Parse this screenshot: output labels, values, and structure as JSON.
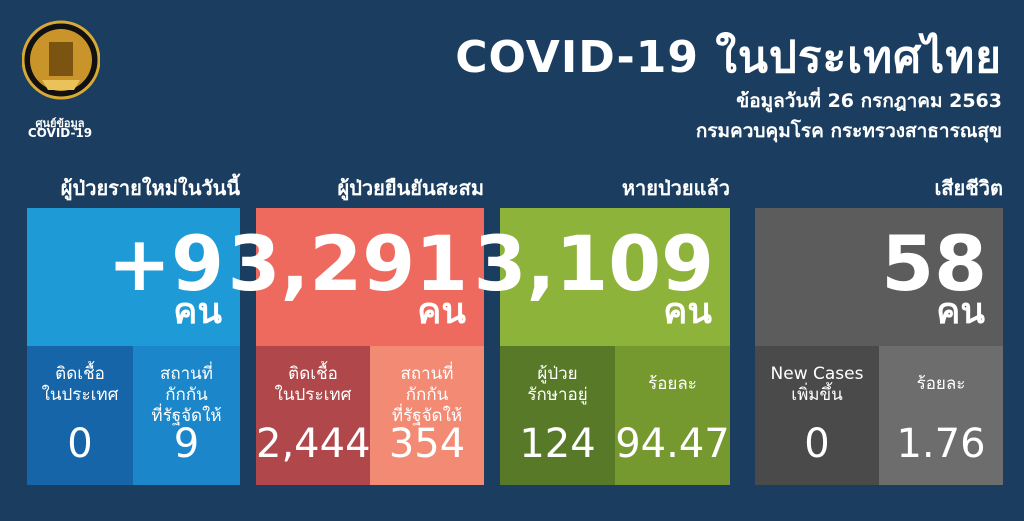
{
  "logo_caption": [
    "ศูนย์ข้อมูล",
    "COVID-19"
  ],
  "header": {
    "title": "COVID-19 ในประเทศไทย",
    "date": "ข้อมูลวันที่ 26 กรกฎาคม 2563",
    "source": "กรมควบคุมโรค กระทรวงสาธารณสุข"
  },
  "panels": [
    {
      "heading": "ผู้ป่วยรายใหม่ในวันนี้",
      "value": "+9",
      "unit": "คน",
      "sub": [
        {
          "label": [
            "ติดเชื้อ",
            "ในประเทศ"
          ],
          "value": "0"
        },
        {
          "label": [
            "สถานที่",
            "กักกัน",
            "ที่รัฐจัดให้"
          ],
          "value": "9"
        }
      ]
    },
    {
      "heading": "ผู้ป่วยยืนยันสะสม",
      "value": "3,291",
      "unit": "คน",
      "sub": [
        {
          "label": [
            "ติดเชื้อ",
            "ในประเทศ"
          ],
          "value": "2,444"
        },
        {
          "label": [
            "สถานที่",
            "กักกัน",
            "ที่รัฐจัดให้"
          ],
          "value": "354"
        }
      ]
    },
    {
      "heading": "หายป่วยแล้ว",
      "value": "3,109",
      "unit": "คน",
      "sub": [
        {
          "label": [
            "ผู้ป่วย",
            "รักษาอยู่"
          ],
          "value": "124"
        },
        {
          "label": [
            "ร้อยละ"
          ],
          "value": "94.47"
        }
      ]
    },
    {
      "heading": "เสียชีวิต",
      "value": "58",
      "unit": "คน",
      "sub": [
        {
          "label": [
            "New Cases",
            "เพิ่มขึ้น"
          ],
          "value": "0"
        },
        {
          "label": [
            "ร้อยละ"
          ],
          "value": "1.76"
        }
      ]
    }
  ]
}
